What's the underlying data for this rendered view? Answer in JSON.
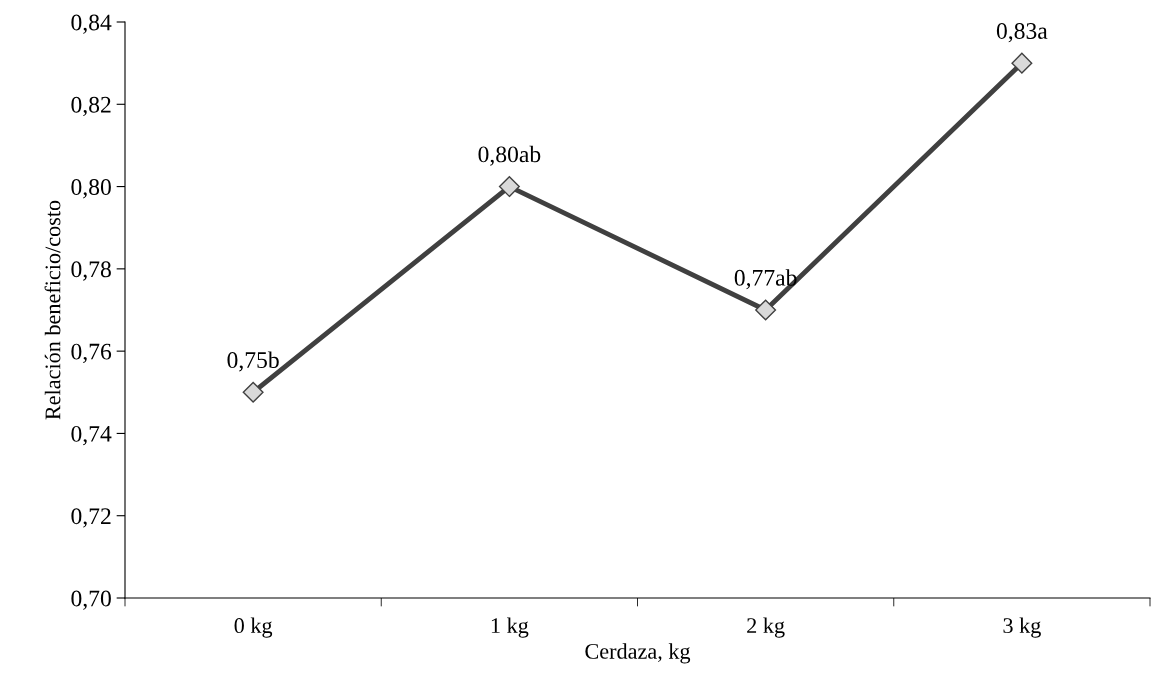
{
  "chart_data": {
    "type": "line",
    "xlabel": "Cerdaza, kg",
    "ylabel": "Relación beneficio/costo",
    "categories": [
      "0 kg",
      "1 kg",
      "2 kg",
      "3 kg"
    ],
    "series": [
      {
        "color": "#404040",
        "values": [
          0.75,
          0.8,
          0.77,
          0.83
        ],
        "value_labels": [
          "0,75b",
          "0,80ab",
          "0,77ab",
          "0,83a"
        ]
      }
    ],
    "ylim": [
      0.7,
      0.84
    ],
    "yticks": [
      {
        "value": 0.7,
        "label": "0,70"
      },
      {
        "value": 0.72,
        "label": "0,72"
      },
      {
        "value": 0.74,
        "label": "0,74"
      },
      {
        "value": 0.76,
        "label": "0,76"
      },
      {
        "value": 0.78,
        "label": "0,78"
      },
      {
        "value": 0.8,
        "label": "0,80"
      },
      {
        "value": 0.82,
        "label": "0,82"
      },
      {
        "value": 0.84,
        "label": "0,84"
      }
    ],
    "marker": "diamond",
    "line_style": "solid",
    "grid": false,
    "legend": false
  }
}
